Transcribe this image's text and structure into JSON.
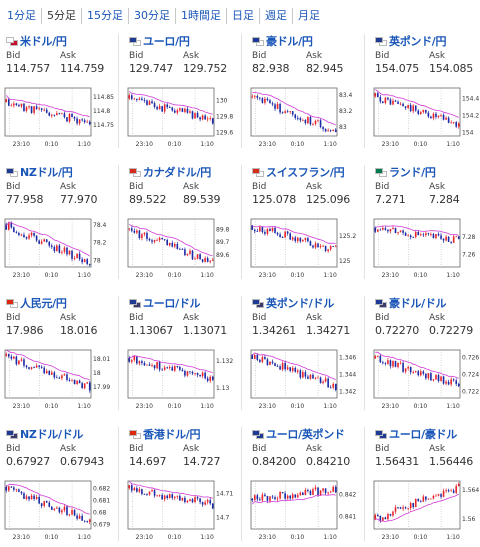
{
  "tabs": [
    "1分足",
    "5分足",
    "15分足",
    "30分足",
    "1時間足",
    "日足",
    "週足",
    "月足"
  ],
  "active_tab": 1,
  "labels": {
    "bid": "Bid",
    "ask": "Ask"
  },
  "colors": {
    "up": "#e8252b",
    "down": "#1b2aa6",
    "ma": "#d23ad8",
    "link": "#1a56b8"
  },
  "panels": [
    {
      "pair": "米ドル/円",
      "bid": "114.757",
      "ask": "114.759",
      "flags": [
        "#ffffff",
        "#c8102e"
      ],
      "yticks": [
        "114.85",
        "114.8",
        "114.75"
      ],
      "ylim": [
        114.71,
        114.88
      ],
      "xticks": [
        "23:10",
        "0:10",
        "1:10"
      ],
      "start": 114.83,
      "end": 114.756,
      "seed": 11
    },
    {
      "pair": "ユーロ/円",
      "bid": "129.747",
      "ask": "129.752",
      "flags": [
        "#1f3a93",
        "#ffffff"
      ],
      "yticks": [
        "130",
        "129.8",
        "129.6"
      ],
      "ylim": [
        129.55,
        130.15
      ],
      "xticks": [
        "23:10",
        "0:10",
        "1:10"
      ],
      "start": 130.02,
      "end": 129.75,
      "seed": 23
    },
    {
      "pair": "豪ドル/円",
      "bid": "82.938",
      "ask": "82.945",
      "flags": [
        "#1f3a93",
        "#ffffff"
      ],
      "yticks": [
        "83.4",
        "83.2",
        "83"
      ],
      "ylim": [
        82.88,
        83.48
      ],
      "xticks": [
        "23:10",
        "0:10",
        "1:10"
      ],
      "start": 83.37,
      "end": 82.94,
      "seed": 37
    },
    {
      "pair": "英ポンド/円",
      "bid": "154.075",
      "ask": "154.085",
      "flags": [
        "#1f3a93",
        "#ffffff"
      ],
      "yticks": [
        "154.4",
        "154.2",
        "154"
      ],
      "ylim": [
        153.95,
        154.52
      ],
      "xticks": [
        "23:10",
        "0:10",
        "1:10"
      ],
      "start": 154.42,
      "end": 154.08,
      "seed": 41
    },
    {
      "pair": "NZドル/円",
      "bid": "77.958",
      "ask": "77.970",
      "flags": [
        "#1f3a93",
        "#ffffff"
      ],
      "yticks": [
        "78.4",
        "78.2",
        "78"
      ],
      "ylim": [
        77.92,
        78.46
      ],
      "xticks": [
        "23:10",
        "0:10",
        "1:10"
      ],
      "start": 78.4,
      "end": 77.96,
      "seed": 53
    },
    {
      "pair": "カナダドル/円",
      "bid": "89.522",
      "ask": "89.539",
      "flags": [
        "#d52b1e",
        "#ffffff"
      ],
      "yticks": [
        "89.8",
        "89.7",
        "89.6"
      ],
      "ylim": [
        89.5,
        89.88
      ],
      "xticks": [
        "23:10",
        "0:10",
        "1:10"
      ],
      "start": 89.8,
      "end": 89.53,
      "seed": 61
    },
    {
      "pair": "スイスフラン/円",
      "bid": "125.078",
      "ask": "125.096",
      "flags": [
        "#d52b1e",
        "#ffffff"
      ],
      "yticks": [
        "125.2",
        "125"
      ],
      "ylim": [
        124.95,
        125.33
      ],
      "xticks": [
        "23:10",
        "0:10",
        "1:10"
      ],
      "start": 125.28,
      "end": 125.08,
      "seed": 71
    },
    {
      "pair": "ランド/円",
      "bid": "7.271",
      "ask": "7.284",
      "flags": [
        "#007a4d",
        "#ffffff"
      ],
      "yticks": [
        "7.28",
        "7.26"
      ],
      "ylim": [
        7.245,
        7.3
      ],
      "xticks": [
        "23:10",
        "0:10",
        "1:10"
      ],
      "start": 7.29,
      "end": 7.275,
      "seed": 83
    },
    {
      "pair": "人民元/円",
      "bid": "17.986",
      "ask": "18.016",
      "flags": [
        "#de2910",
        "#ffffff"
      ],
      "yticks": [
        "18.01",
        "18",
        "17.99"
      ],
      "ylim": [
        17.982,
        18.016
      ],
      "xticks": [
        "23:10",
        "0:10",
        "1:10"
      ],
      "start": 18.012,
      "end": 17.99,
      "seed": 97
    },
    {
      "pair": "ユーロ/ドル",
      "bid": "1.13067",
      "ask": "1.13071",
      "flags": [
        "#1f3a93",
        "#3c3b6e"
      ],
      "yticks": [
        "1.132",
        "1.13"
      ],
      "ylim": [
        1.1292,
        1.1328
      ],
      "xticks": [
        "23:10",
        "0:10",
        "1:10"
      ],
      "start": 1.1322,
      "end": 1.1307,
      "seed": 101
    },
    {
      "pair": "英ポンド/ドル",
      "bid": "1.34261",
      "ask": "1.34271",
      "flags": [
        "#1f3a93",
        "#3c3b6e"
      ],
      "yticks": [
        "1.346",
        "1.344",
        "1.342"
      ],
      "ylim": [
        1.3412,
        1.3468
      ],
      "xticks": [
        "23:10",
        "0:10",
        "1:10"
      ],
      "start": 1.3462,
      "end": 1.3426,
      "seed": 113
    },
    {
      "pair": "豪ドル/ドル",
      "bid": "0.72270",
      "ask": "0.72279",
      "flags": [
        "#1f3a93",
        "#3c3b6e"
      ],
      "yticks": [
        "0.726",
        "0.724",
        "0.722"
      ],
      "ylim": [
        0.7212,
        0.7268
      ],
      "xticks": [
        "23:10",
        "0:10",
        "1:10"
      ],
      "start": 0.7258,
      "end": 0.7227,
      "seed": 127
    },
    {
      "pair": "NZドル/ドル",
      "bid": "0.67927",
      "ask": "0.67943",
      "flags": [
        "#1f3a93",
        "#3c3b6e"
      ],
      "yticks": [
        "0.682",
        "0.681",
        "0.68",
        "0.679"
      ],
      "ylim": [
        0.6786,
        0.6826
      ],
      "xticks": [
        "23:10",
        "0:10",
        "1:10"
      ],
      "start": 0.6821,
      "end": 0.6793,
      "seed": 131
    },
    {
      "pair": "香港ドル/円",
      "bid": "14.697",
      "ask": "14.727",
      "flags": [
        "#de2910",
        "#ffffff"
      ],
      "yticks": [
        "14.71",
        "14.7"
      ],
      "ylim": [
        14.695,
        14.715
      ],
      "xticks": [
        "23:10",
        "0:10",
        "1:10"
      ],
      "start": 14.712,
      "end": 14.705,
      "seed": 139
    },
    {
      "pair": "ユーロ/英ポンド",
      "bid": "0.84200",
      "ask": "0.84210",
      "flags": [
        "#1f3a93",
        "#1f3a93"
      ],
      "yticks": [
        "0.842",
        "0.841"
      ],
      "ylim": [
        0.8404,
        0.8426
      ],
      "xticks": [
        "23:10",
        "0:10",
        "1:10"
      ],
      "start": 0.8418,
      "end": 0.8422,
      "seed": 149
    },
    {
      "pair": "ユーロ/豪ドル",
      "bid": "1.56431",
      "ask": "1.56446",
      "flags": [
        "#1f3a93",
        "#1f3a93"
      ],
      "yticks": [
        "1.564",
        "1.56"
      ],
      "ylim": [
        1.5585,
        1.5652
      ],
      "xticks": [
        "23:10",
        "0:10",
        "1:10"
      ],
      "start": 1.5598,
      "end": 1.5644,
      "seed": 151
    }
  ]
}
